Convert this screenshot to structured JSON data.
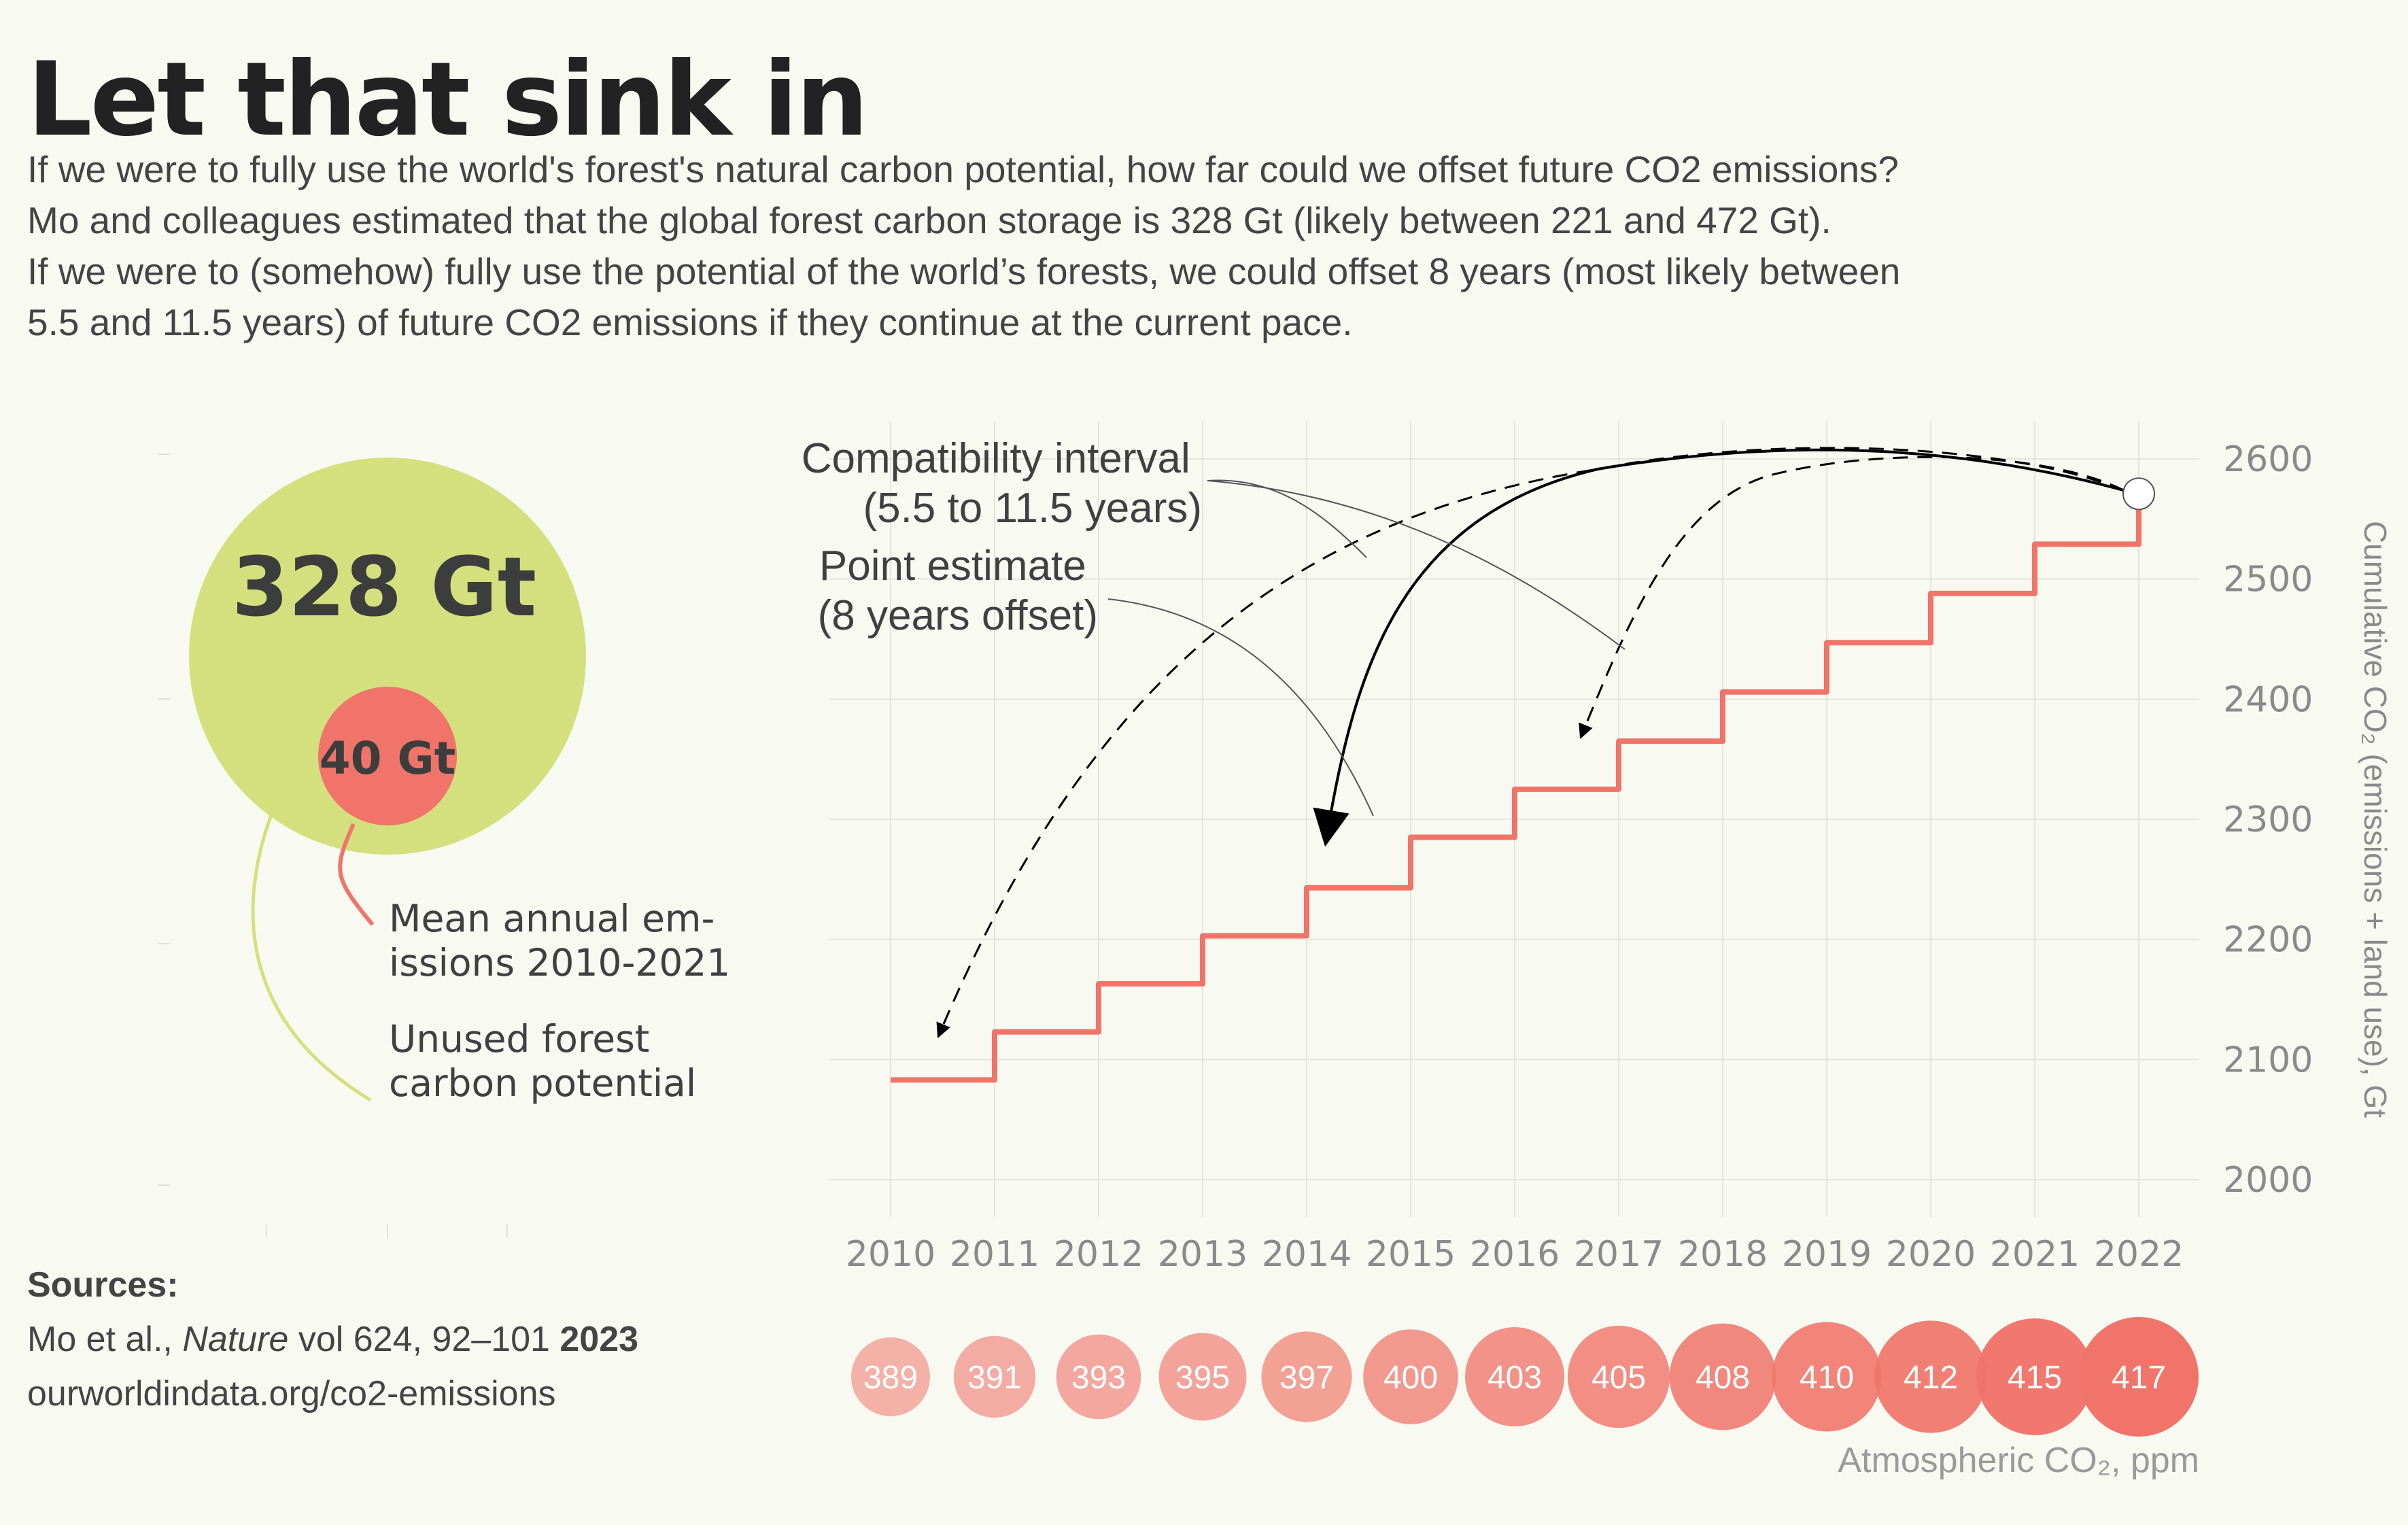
{
  "header": {
    "title": "Let that sink in",
    "subtitle_lines": [
      "If we were to fully use the world's forest's natural carbon potential, how far could we offset future CO2 emissions?",
      "Mo and colleagues estimated that the global forest carbon storage is 328 Gt (likely between 221 and 472 Gt).",
      "If we were to (somehow) fully use the potential of the world’s forests, we could offset 8 years (most likely between",
      "5.5 and 11.5 years) of future CO2 emissions if they continue at the current pace."
    ]
  },
  "bubbles": {
    "large": {
      "value": 328,
      "label": "328 Gt",
      "color": "#d4e07e",
      "legend": [
        "Unused forest",
        "carbon potential"
      ]
    },
    "small": {
      "value": 40,
      "label": "40 Gt",
      "color": "#f07469",
      "legend": [
        "Mean annual em-",
        "issions 2010-2021"
      ]
    }
  },
  "annotations": {
    "compat": [
      "Compatibility interval",
      "(5.5 to 11.5 years)"
    ],
    "point": [
      "Point estimate",
      "(8 years offset)"
    ]
  },
  "sources": {
    "header": "Sources:",
    "line1_prefix": "Mo et al., ",
    "line1_journal": "Nature",
    "line1_mid": " vol 624, 92–101 ",
    "line1_year": "2023",
    "line2": "ourworldindata.org/co2-emissions"
  },
  "chart_data": [
    {
      "type": "line",
      "subtype": "step",
      "x": [
        2010,
        2011,
        2012,
        2013,
        2014,
        2015,
        2016,
        2017,
        2018,
        2019,
        2020,
        2021,
        2022
      ],
      "series": [
        {
          "name": "Cumulative CO2 (emissions + land use), Gt",
          "color": "#f07469",
          "values": [
            2083,
            2123,
            2163,
            2203,
            2243,
            2285,
            2325,
            2365,
            2406,
            2447,
            2488,
            2529,
            2571
          ]
        }
      ],
      "end_marker": {
        "x": 2022,
        "y": 2571
      },
      "arrows": {
        "point_estimate_target_x": 2014,
        "interval_low_target_x": 2016.5,
        "interval_high_target_x": 2010.5
      },
      "xlabel": "",
      "ylabel": "Cumulative CO₂ (emissions + land use), Gt",
      "ylim": [
        1985,
        2625
      ],
      "yticks": [
        2000,
        2100,
        2200,
        2300,
        2400,
        2500,
        2600
      ],
      "xticks": [
        2010,
        2011,
        2012,
        2013,
        2014,
        2015,
        2016,
        2017,
        2018,
        2019,
        2020,
        2021,
        2022
      ],
      "grid": true,
      "y_axis_side": "right"
    },
    {
      "type": "scatter",
      "subtype": "bubble-row",
      "title": "Atmospheric CO₂, ppm",
      "x": [
        2010,
        2011,
        2012,
        2013,
        2014,
        2015,
        2016,
        2017,
        2018,
        2019,
        2020,
        2021,
        2022
      ],
      "values": [
        389,
        391,
        393,
        395,
        397,
        400,
        403,
        405,
        408,
        410,
        412,
        415,
        417
      ],
      "color": "#f07469"
    }
  ]
}
